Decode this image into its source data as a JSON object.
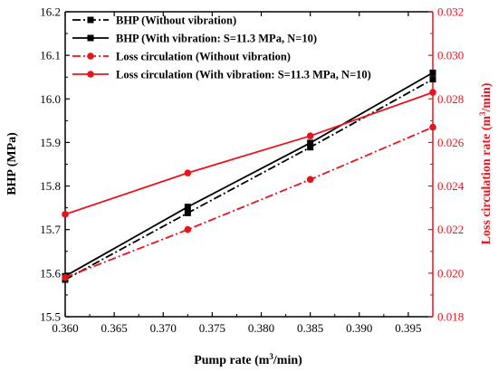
{
  "chart_data": {
    "type": "line",
    "xlabel": "Pump rate (m³/min)",
    "ylabel_left": "BHP (MPa)",
    "ylabel_right": "Loss circulation rate (m³/min)",
    "xlim": [
      0.36,
      0.3975
    ],
    "ylim_left": [
      15.5,
      16.2
    ],
    "ylim_right": [
      0.018,
      0.032
    ],
    "x_ticks": [
      "0.360",
      "0.365",
      "0.370",
      "0.375",
      "0.380",
      "0.385",
      "0.390",
      "0.395"
    ],
    "y_left_ticks": [
      "15.5",
      "15.6",
      "15.7",
      "15.8",
      "15.9",
      "16.0",
      "16.1",
      "16.2"
    ],
    "y_right_ticks": [
      "0.018",
      "0.020",
      "0.022",
      "0.024",
      "0.026",
      "0.028",
      "0.030",
      "0.032"
    ],
    "colors": {
      "black": "#000000",
      "red": "#e8141c"
    },
    "series": [
      {
        "name": "BHP (Without vibration)",
        "axis": "left",
        "color": "#000000",
        "dash": "dashdot",
        "marker": "square",
        "x": [
          0.36,
          0.3725,
          0.385,
          0.3975
        ],
        "y": [
          15.585,
          15.738,
          15.889,
          16.045
        ]
      },
      {
        "name": "BHP (With vibration: S=11.3 MPa, N=10)",
        "axis": "left",
        "color": "#000000",
        "dash": "solid",
        "marker": "square",
        "x": [
          0.36,
          0.3725,
          0.385,
          0.3975
        ],
        "y": [
          15.593,
          15.752,
          15.899,
          16.06
        ]
      },
      {
        "name": "Loss circulation  (Without vibration)",
        "axis": "right",
        "color": "#e8141c",
        "dash": "dashdot",
        "marker": "circle",
        "x": [
          0.36,
          0.3725,
          0.385,
          0.3975
        ],
        "y": [
          0.0198,
          0.022,
          0.0243,
          0.0267
        ]
      },
      {
        "name": "Loss circulation  (With vibration: S=11.3 MPa, N=10)",
        "axis": "right",
        "color": "#e8141c",
        "dash": "solid",
        "marker": "circle",
        "x": [
          0.36,
          0.3725,
          0.385,
          0.3975
        ],
        "y": [
          0.0227,
          0.0246,
          0.0263,
          0.0283
        ]
      }
    ]
  }
}
